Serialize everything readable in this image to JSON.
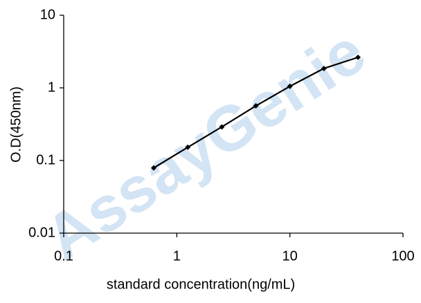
{
  "chart_data": {
    "type": "line",
    "xlabel": "standard concentration(ng/mL)",
    "ylabel": "O.D(450nm)",
    "watermark": "AssayGenie",
    "x": [
      0.625,
      1.25,
      2.5,
      5,
      10,
      20,
      40
    ],
    "series": [
      {
        "color": "#000000",
        "values": [
          0.079,
          0.152,
          0.29,
          0.565,
          1.05,
          1.85,
          2.63
        ]
      }
    ],
    "xscale": "log",
    "yscale": "log",
    "xlim": [
      0.1,
      100
    ],
    "ylim": [
      0.01,
      10
    ],
    "xticks": [
      0.1,
      1,
      10,
      100
    ],
    "yticks": [
      0.01,
      0.1,
      1,
      10
    ],
    "grid": false
  }
}
